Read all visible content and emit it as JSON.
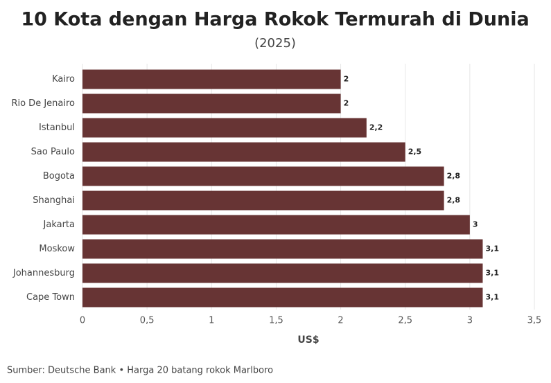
{
  "chart_data": {
    "type": "bar",
    "orientation": "horizontal",
    "title": "10 Kota dengan Harga Rokok Termurah di Dunia",
    "subtitle": "(2025)",
    "x_label": "US$",
    "source": "Sumber: Deutsche Bank • Harga 20 batang rokok Marlboro",
    "categories": [
      "Kairo",
      "Rio De Jenairo",
      "Istanbul",
      "Sao Paulo",
      "Bogota",
      "Shanghai",
      "Jakarta",
      "Moskow",
      "Johannesburg",
      "Cape Town"
    ],
    "values": [
      2,
      2,
      2.2,
      2.5,
      2.8,
      2.8,
      3,
      3.1,
      3.1,
      3.1
    ],
    "value_labels": [
      "2",
      "2",
      "2,2",
      "2,5",
      "2,8",
      "2,8",
      "3",
      "3,1",
      "3,1",
      "3,1"
    ],
    "color": "#673434",
    "xlim": [
      0,
      3.5
    ],
    "xticks": [
      0,
      {
        "value": 0.5,
        "label": "0,5"
      },
      1,
      {
        "value": 1.5,
        "label": "1,5"
      },
      2,
      {
        "value": 2.5,
        "label": "2,5"
      },
      3,
      {
        "value": 3.5,
        "label": "3,5"
      }
    ],
    "grid": true
  }
}
